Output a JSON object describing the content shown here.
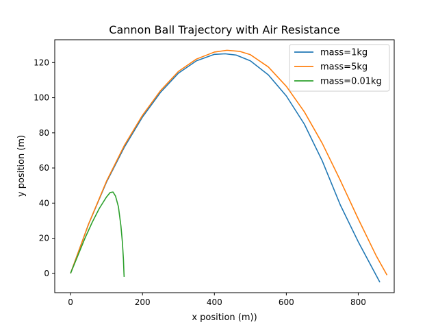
{
  "chart_data": {
    "type": "line",
    "title": "Cannon Ball Trajectory with Air Resistance",
    "xlabel": "x position (m))",
    "ylabel": "y position (m)",
    "xlim": [
      -44,
      900
    ],
    "ylim": [
      -11,
      133
    ],
    "xticks": [
      0,
      200,
      400,
      600,
      800
    ],
    "yticks": [
      0,
      20,
      40,
      60,
      80,
      100,
      120
    ],
    "grid": false,
    "legend_position": "top-right",
    "series": [
      {
        "name": "mass=1kg",
        "color": "#1f77b4",
        "points": [
          [
            0,
            0
          ],
          [
            50,
            28
          ],
          [
            100,
            52
          ],
          [
            150,
            72
          ],
          [
            200,
            89
          ],
          [
            250,
            103
          ],
          [
            300,
            114
          ],
          [
            350,
            121
          ],
          [
            400,
            124.7
          ],
          [
            430,
            125
          ],
          [
            460,
            124.3
          ],
          [
            500,
            121
          ],
          [
            550,
            113
          ],
          [
            600,
            101
          ],
          [
            650,
            85
          ],
          [
            700,
            64
          ],
          [
            750,
            39
          ],
          [
            800,
            18
          ],
          [
            860,
            -5
          ]
        ]
      },
      {
        "name": "mass=5kg",
        "color": "#ff7f0e",
        "points": [
          [
            0,
            0
          ],
          [
            50,
            28
          ],
          [
            100,
            52.5
          ],
          [
            150,
            73
          ],
          [
            200,
            90
          ],
          [
            250,
            104
          ],
          [
            300,
            115
          ],
          [
            350,
            122
          ],
          [
            400,
            126
          ],
          [
            435,
            127
          ],
          [
            470,
            126.4
          ],
          [
            500,
            124.5
          ],
          [
            550,
            117.5
          ],
          [
            600,
            106.5
          ],
          [
            650,
            92
          ],
          [
            700,
            74
          ],
          [
            750,
            53
          ],
          [
            800,
            31
          ],
          [
            850,
            10
          ],
          [
            880,
            -1
          ]
        ]
      },
      {
        "name": "mass=0.01kg",
        "color": "#2ca02c",
        "points": [
          [
            0,
            0
          ],
          [
            20,
            10
          ],
          [
            40,
            20
          ],
          [
            60,
            29
          ],
          [
            80,
            37
          ],
          [
            100,
            43.5
          ],
          [
            110,
            46
          ],
          [
            118,
            46.3
          ],
          [
            125,
            44
          ],
          [
            133,
            38
          ],
          [
            140,
            27
          ],
          [
            144,
            18
          ],
          [
            147,
            8
          ],
          [
            148.5,
            0
          ],
          [
            149,
            -2
          ]
        ]
      }
    ]
  }
}
